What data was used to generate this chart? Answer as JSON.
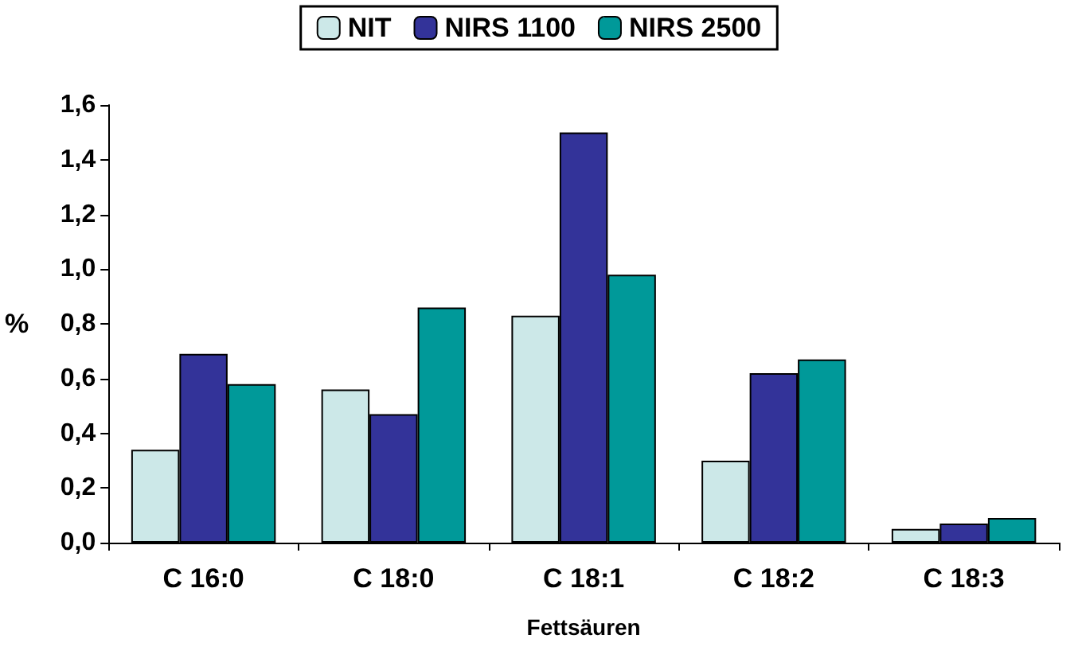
{
  "chart_data": {
    "type": "bar",
    "xlabel": "Fettsäuren",
    "ylabel": "%",
    "categories": [
      "C 16:0",
      "C 18:0",
      "C 18:1",
      "C 18:2",
      "C 18:3"
    ],
    "series": [
      {
        "name": "NIT",
        "color": "#cce8e8",
        "values": [
          0.34,
          0.56,
          0.83,
          0.3,
          0.05
        ]
      },
      {
        "name": "NIRS 1100",
        "color": "#333399",
        "values": [
          0.69,
          0.47,
          1.5,
          0.62,
          0.07
        ]
      },
      {
        "name": "NIRS 2500",
        "color": "#009999",
        "values": [
          0.58,
          0.86,
          0.98,
          0.67,
          0.09
        ]
      }
    ],
    "ylim": [
      0,
      1.6
    ],
    "yticks": [
      {
        "value": 0,
        "label": "0,0"
      },
      {
        "value": 0.2,
        "label": "0,2"
      },
      {
        "value": 0.4,
        "label": "0,4"
      },
      {
        "value": 0.6,
        "label": "0,6"
      },
      {
        "value": 0.8,
        "label": "0,8"
      },
      {
        "value": 1,
        "label": "1,0"
      },
      {
        "value": 1.2,
        "label": "1,2"
      },
      {
        "value": 1.4,
        "label": "1,4"
      },
      {
        "value": 1.6,
        "label": "1,6"
      }
    ],
    "legend": "top",
    "grid": false
  }
}
